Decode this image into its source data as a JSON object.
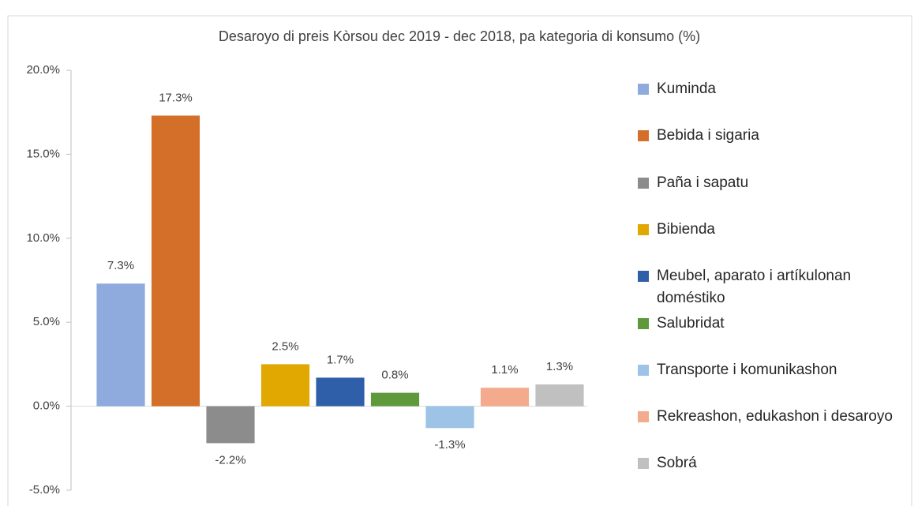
{
  "chart_data": {
    "type": "bar",
    "title": "Desaroyo di preis Kòrsou dec 2019 - dec 2018, pa kategoria di konsumo (%)",
    "categories": [
      "Kuminda",
      "Bebida i sigaria",
      "Paña i sapatu",
      "Bibienda",
      "Meubel, aparato i artíkulonan doméstiko",
      "Salubridat",
      "Transporte i komunikashon",
      "Rekreashon, edukashon i desaroyo",
      "Sobrá"
    ],
    "values": [
      7.3,
      17.3,
      -2.2,
      2.5,
      1.7,
      0.8,
      -1.3,
      1.1,
      1.3
    ],
    "value_labels": [
      "7.3%",
      "17.3%",
      "-2.2%",
      "2.5%",
      "1.7%",
      "0.8%",
      "-1.3%",
      "1.1%",
      "1.3%"
    ],
    "colors": [
      "#8faadc",
      "#d46f2a",
      "#8c8c8c",
      "#e0a800",
      "#2f5fa8",
      "#5e9a3c",
      "#9dc3e6",
      "#f4aa8c",
      "#c0c0c0"
    ],
    "ylim": [
      -5,
      20
    ],
    "yticks": [
      {
        "value": -5,
        "label": "-5.0%"
      },
      {
        "value": 0,
        "label": "0.0%"
      },
      {
        "value": 5,
        "label": "5.0%"
      },
      {
        "value": 10,
        "label": "10.0%"
      },
      {
        "value": 15,
        "label": "15.0%"
      },
      {
        "value": 20,
        "label": "20.0%"
      }
    ],
    "legend": "right"
  }
}
